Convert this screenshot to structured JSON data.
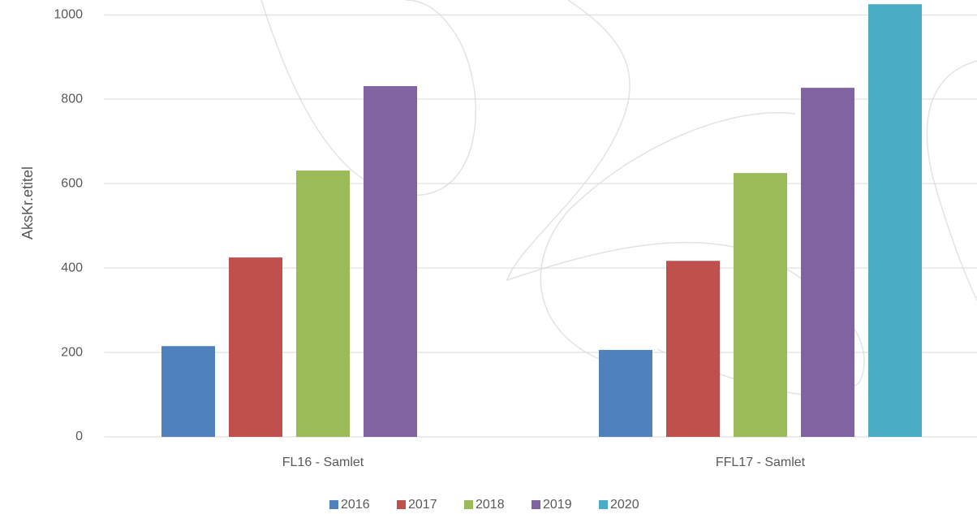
{
  "chart_data": {
    "type": "bar",
    "y_label": "AksKr.etitel",
    "categories": [
      "FL16 - Samlet",
      "FFL17 - Samlet"
    ],
    "series": [
      {
        "name": "2016",
        "color": "#4f81bd",
        "values": [
          215,
          206
        ]
      },
      {
        "name": "2017",
        "color": "#c0504d",
        "values": [
          425,
          417
        ]
      },
      {
        "name": "2018",
        "color": "#9bbb59",
        "values": [
          631,
          625
        ]
      },
      {
        "name": "2019",
        "color": "#8064a2",
        "values": [
          831,
          827
        ]
      },
      {
        "name": "2020",
        "color": "#4bacc6",
        "values": [
          null,
          1025
        ]
      }
    ],
    "ylim": [
      0,
      1035
    ],
    "yticks": [
      0,
      200,
      400,
      600,
      800,
      1000
    ],
    "grid": true,
    "legend": "bottom"
  }
}
